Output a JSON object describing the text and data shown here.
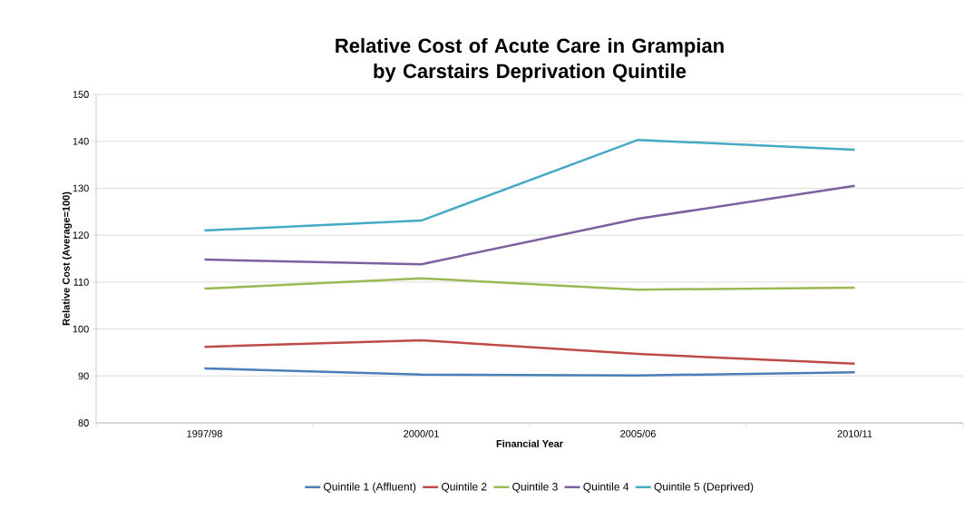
{
  "chart_data": {
    "type": "line",
    "title": "Relative Cost of Acute Care in Grampian by Carstairs Deprivation Quintile",
    "xlabel": "Financial Year",
    "ylabel": "Relative Cost (Average=100)",
    "categories": [
      "1997/98",
      "2000/01",
      "2005/06",
      "2010/11"
    ],
    "series": [
      {
        "name": "Quintile 1 (Affluent)",
        "color": "#4a7ebb",
        "values": [
          91.6,
          90.3,
          90.1,
          90.8
        ]
      },
      {
        "name": "Quintile 2",
        "color": "#be4b48",
        "values": [
          96.2,
          97.6,
          94.7,
          92.6
        ]
      },
      {
        "name": "Quintile 3",
        "color": "#98b954",
        "values": [
          108.6,
          110.8,
          108.4,
          108.8
        ]
      },
      {
        "name": "Quintile 4",
        "color": "#7d60a0",
        "values": [
          114.8,
          113.8,
          123.5,
          130.5
        ]
      },
      {
        "name": "Quintile 5 (Deprived)",
        "color": "#46aac5",
        "values": [
          121,
          123.1,
          140.3,
          138.2
        ]
      }
    ],
    "ylim": [
      80,
      150
    ],
    "yticks": [
      80,
      90,
      100,
      110,
      120,
      130,
      140,
      150
    ],
    "grid": "y",
    "legend": "bottom",
    "marker": "none",
    "line_style": "solid"
  }
}
